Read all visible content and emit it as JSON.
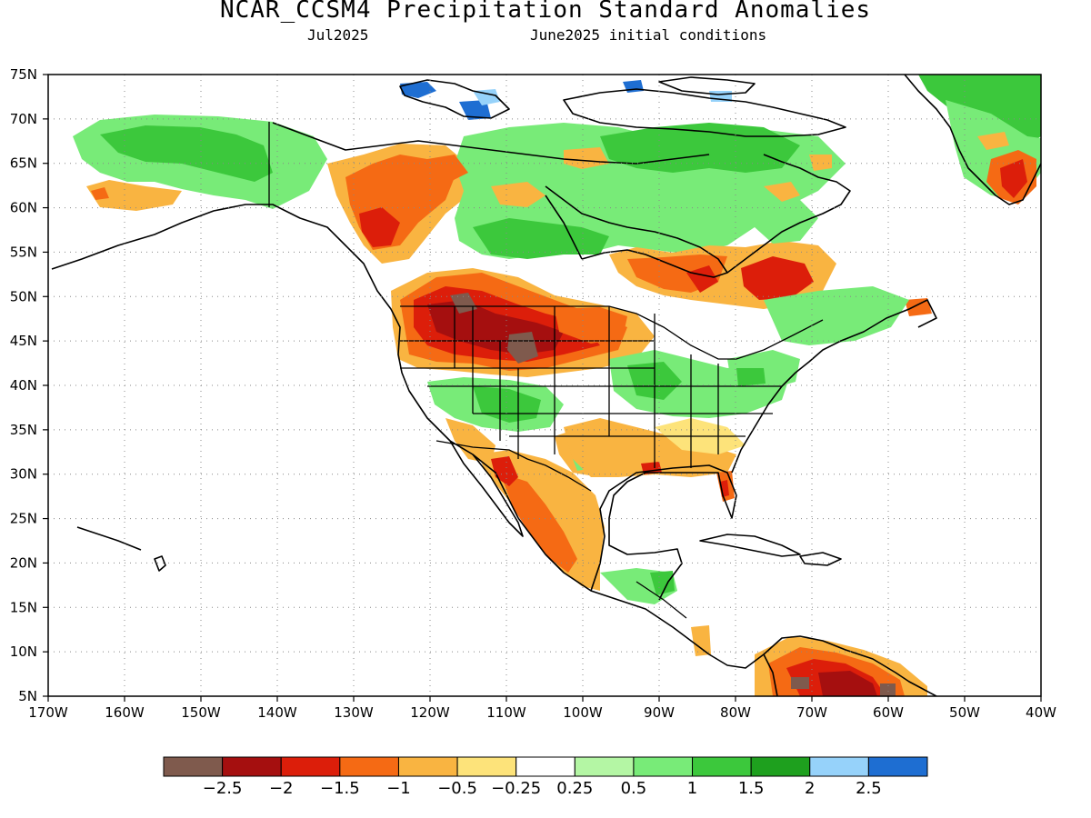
{
  "title": "NCAR_CCSM4 Precipitation Standard Anomalies",
  "subtitle_left": "Jul2025",
  "subtitle_right": "June2025 initial conditions",
  "axes": {
    "lon_ticks": [
      "170W",
      "160W",
      "150W",
      "140W",
      "130W",
      "120W",
      "110W",
      "100W",
      "90W",
      "80W",
      "70W",
      "60W",
      "50W",
      "40W"
    ],
    "lat_ticks": [
      "75N",
      "70N",
      "65N",
      "60N",
      "55N",
      "50N",
      "45N",
      "40N",
      "35N",
      "30N",
      "25N",
      "20N",
      "15N",
      "10N",
      "5N"
    ],
    "lon_range": [
      -170,
      -40
    ],
    "lat_range": [
      5,
      75
    ],
    "grid": "dotted"
  },
  "colorbar": {
    "colors": [
      "#7f5a4d",
      "#a50f0f",
      "#dc1e0a",
      "#f56a14",
      "#f9b441",
      "#fde37a",
      "#ffffff",
      "#b4f6a4",
      "#78eb78",
      "#3cc83c",
      "#1ea01e",
      "#96d2fa",
      "#1e6ed2"
    ],
    "labels": [
      "-2.5",
      "-2",
      "-1.5",
      "-1",
      "-0.5",
      "-0.25",
      "0.25",
      "0.5",
      "1",
      "1.5",
      "2",
      "2.5"
    ]
  },
  "regions": [
    {
      "name": "pacific-nw-northern-rockies",
      "level": "-2 to -2.5",
      "color": "#a50f0f"
    },
    {
      "name": "western-canada",
      "level": "-1 to -1.5",
      "color": "#f56a14"
    },
    {
      "name": "quebec-labrador",
      "level": "-1.5 to -2",
      "color": "#dc1e0a"
    },
    {
      "name": "alaska",
      "level": "0.5 to 1.5",
      "color": "#3cc83c"
    },
    {
      "name": "greenland",
      "level": "1 to 2",
      "color": "#1ea01e"
    },
    {
      "name": "ohio-valley",
      "level": "0.5 to 1.5",
      "color": "#3cc83c"
    },
    {
      "name": "mexico",
      "level": "-0.5 to -1",
      "color": "#f9b441"
    },
    {
      "name": "northern-south-america",
      "level": "-1.5 to -2.5",
      "color": "#dc1e0a"
    }
  ]
}
